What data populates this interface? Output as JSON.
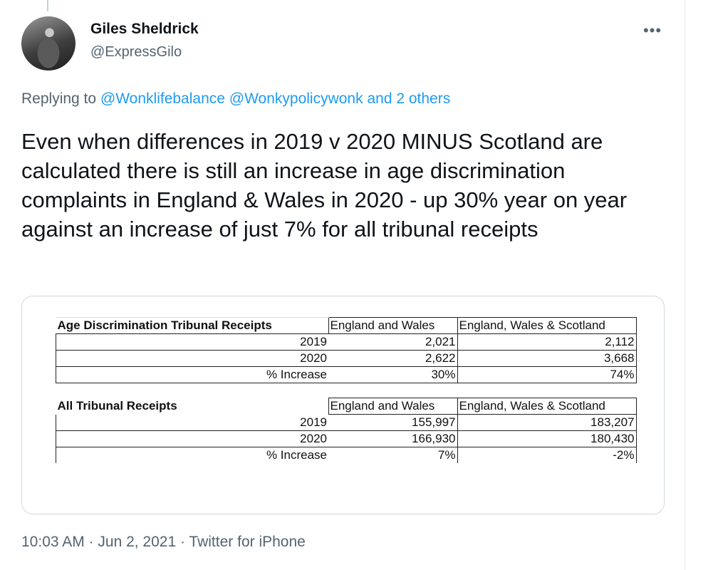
{
  "tweet": {
    "author_name": "Giles Sheldrick",
    "author_handle": "@ExpressGilo",
    "more_label": "•••",
    "replying_prefix": "Replying to",
    "replying_to": [
      "@Wonklifebalance",
      "@Wonkypolicywonk",
      "and 2 others"
    ],
    "text": "Even when differences in 2019 v 2020 MINUS Scotland are calculated there is still an increase in age discrimination complaints in England & Wales in 2020 - up 30% year on year against an increase of just 7% for all tribunal receipts",
    "timestamp": "10:03 AM · Jun 2, 2021 · Twitter for iPhone"
  },
  "media": {
    "table1": {
      "title": "Age Discrimination Tribunal Receipts",
      "col2_header": "England and Wales",
      "col3_header": "England, Wales & Scotland",
      "rows": [
        {
          "label": "2019",
          "ew": "2,021",
          "ews": "2,112"
        },
        {
          "label": "2020",
          "ew": "2,622",
          "ews": "3,668"
        },
        {
          "label": "% Increase",
          "ew": "30%",
          "ews": "74%"
        }
      ]
    },
    "table2": {
      "title": "All Tribunal Receipts",
      "col2_header": "England and Wales",
      "col3_header": "England, Wales & Scotland",
      "rows": [
        {
          "label": "2019",
          "ew": "155,997",
          "ews": "183,207"
        },
        {
          "label": "2020",
          "ew": "166,930",
          "ews": "180,430"
        },
        {
          "label": "% Increase",
          "ew": "7%",
          "ews": "-2%"
        }
      ]
    }
  }
}
